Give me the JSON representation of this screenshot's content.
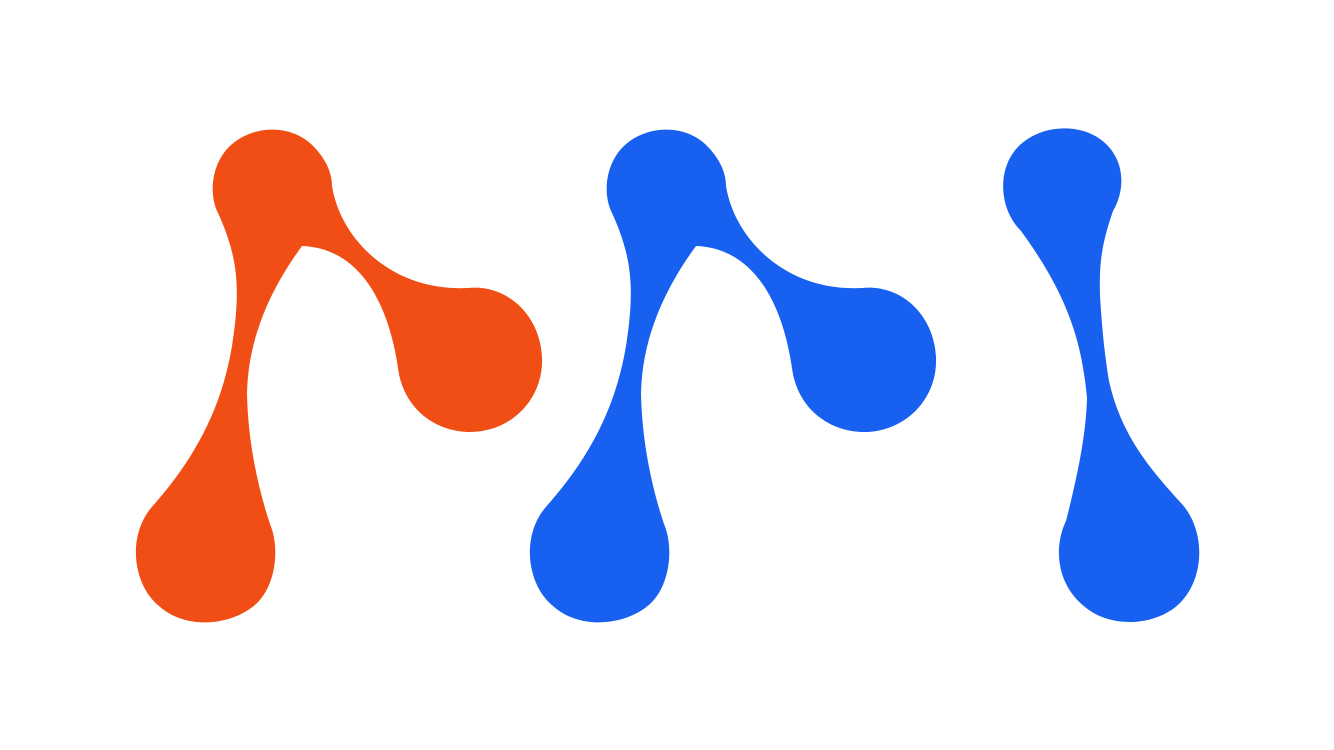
{
  "logo": {
    "marks": [
      {
        "name": "orange-node-glyph",
        "color": "#F04E15",
        "icon": "connected-nodes-glyph"
      },
      {
        "name": "blue-node-glyph",
        "color": "#1760F0",
        "icon": "connected-nodes-glyph"
      },
      {
        "name": "blue-stroke-glyph",
        "color": "#1760F0",
        "icon": "two-node-stroke-glyph"
      }
    ]
  }
}
